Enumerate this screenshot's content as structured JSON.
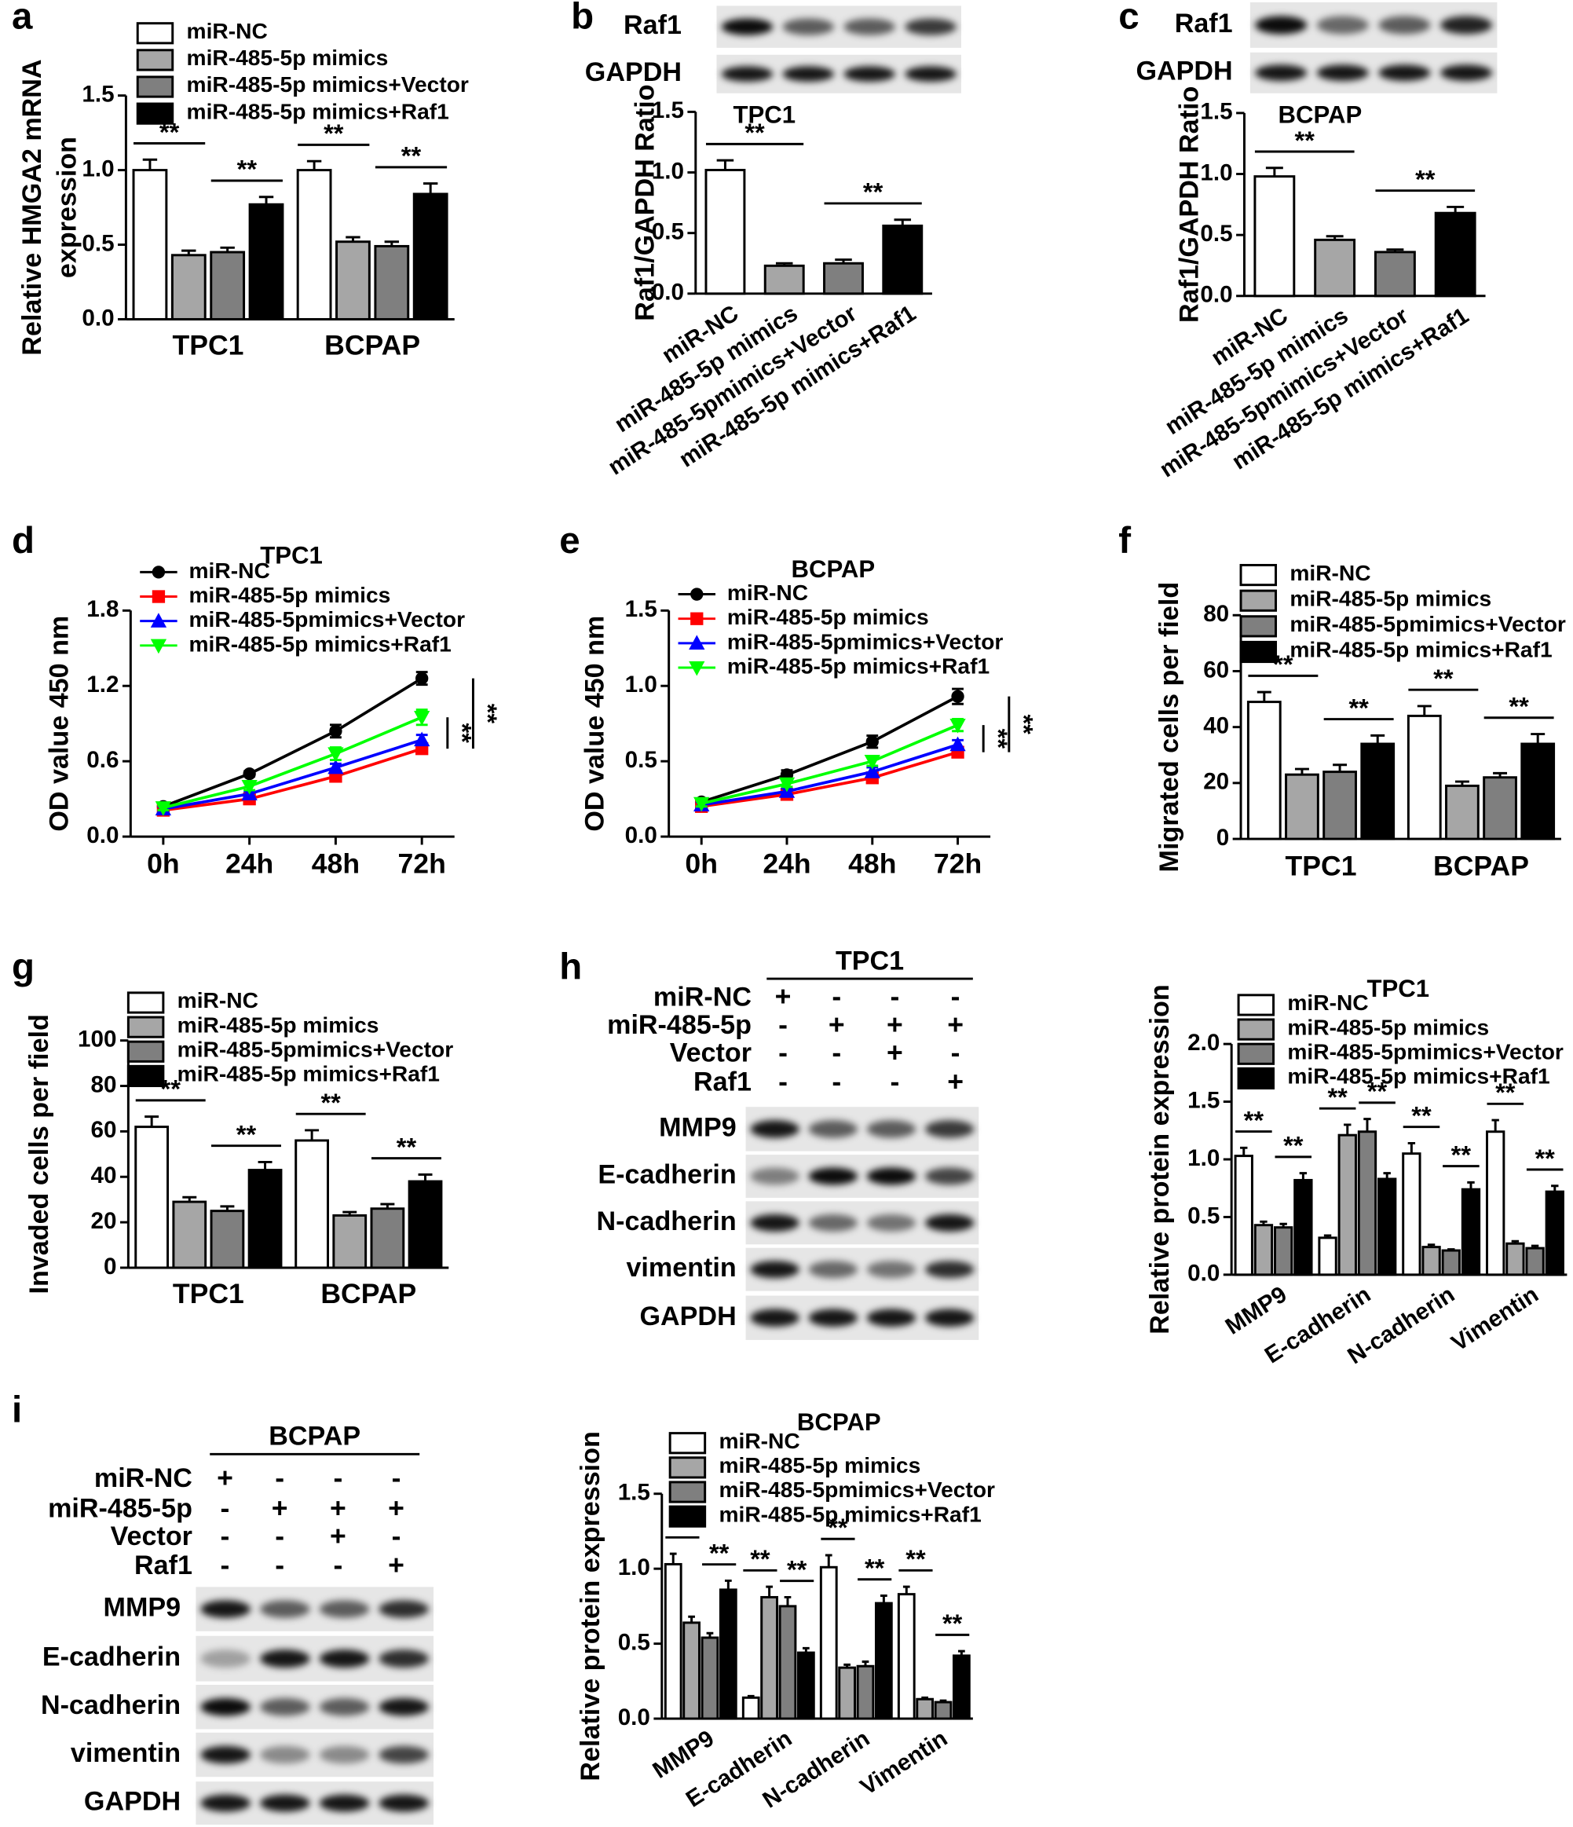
{
  "chart_data": [
    {
      "type": "bar",
      "ylabel": [
        "Relative HMGA2 mRNA",
        "expression"
      ],
      "categories": [
        "TPC1",
        "BCPAP"
      ],
      "series": [
        {
          "name": "miR-NC",
          "color": "#ffffff",
          "values": [
            1.0,
            1.0
          ],
          "errors": [
            0.07,
            0.06
          ]
        },
        {
          "name": "miR-485-5p mimics",
          "color": "#a6a6a6",
          "values": [
            0.43,
            0.52
          ],
          "errors": [
            0.03,
            0.03
          ]
        },
        {
          "name": "miR-485-5p mimics+Vector",
          "color": "#7f7f7f",
          "values": [
            0.45,
            0.49
          ],
          "errors": [
            0.03,
            0.03
          ]
        },
        {
          "name": "miR-485-5p mimics+Raf1",
          "color": "#000000",
          "values": [
            0.77,
            0.84
          ],
          "errors": [
            0.05,
            0.07
          ]
        }
      ],
      "ylim": [
        0,
        1.5
      ],
      "yticks": [
        {
          "value": 0,
          "label": "0.0"
        },
        0.5,
        {
          "value": 1,
          "label": "1.0"
        },
        1.5
      ],
      "annotations": [
        "**",
        "**",
        "**",
        "**"
      ]
    },
    {
      "type": "bar",
      "title": "TPC1",
      "ylabel": "Raf1/GAPDH Ratio",
      "categories": [
        "miR-NC",
        "miR-485-5p mimics",
        "miR-485-5pmimics+Vector",
        "miR-485-5p mimics+Raf1"
      ],
      "values": [
        1.02,
        0.23,
        0.25,
        0.56
      ],
      "errors": [
        0.08,
        0.02,
        0.03,
        0.05
      ],
      "colors": [
        "#ffffff",
        "#a6a6a6",
        "#7f7f7f",
        "#000000"
      ],
      "ylim": [
        0,
        1.5
      ],
      "yticks": [
        {
          "value": 0,
          "label": "0.0"
        },
        0.5,
        {
          "value": 1,
          "label": "1.0"
        },
        1.5
      ],
      "annotations": [
        "**",
        "**"
      ]
    },
    {
      "type": "bar",
      "title": "BCPAP",
      "ylabel": "Raf1/GAPDH Ratio",
      "categories": [
        "miR-NC",
        "miR-485-5p mimics",
        "miR-485-5pmimics+Vector",
        "miR-485-5p mimics+Raf1"
      ],
      "values": [
        0.98,
        0.46,
        0.36,
        0.68
      ],
      "errors": [
        0.07,
        0.03,
        0.02,
        0.05
      ],
      "colors": [
        "#ffffff",
        "#a6a6a6",
        "#7f7f7f",
        "#000000"
      ],
      "ylim": [
        0,
        1.5
      ],
      "yticks": [
        {
          "value": 0,
          "label": "0.0"
        },
        0.5,
        {
          "value": 1,
          "label": "1.0"
        },
        1.5
      ],
      "annotations": [
        "**",
        "**"
      ]
    },
    {
      "type": "line",
      "title": "TPC1",
      "ylabel": "OD value 450 nm",
      "categories": [
        "0h",
        "24h",
        "48h",
        "72h"
      ],
      "series": [
        {
          "name": "miR-NC",
          "color": "#000000",
          "marker": "circle",
          "values": [
            0.24,
            0.5,
            0.84,
            1.26
          ],
          "errors": [
            0.02,
            0.02,
            0.05,
            0.05
          ]
        },
        {
          "name": "miR-485-5p mimics",
          "color": "#ff0000",
          "marker": "square",
          "values": [
            0.21,
            0.3,
            0.48,
            0.7
          ],
          "errors": [
            0.02,
            0.02,
            0.03,
            0.04
          ]
        },
        {
          "name": "miR-485-5pmimics+Vector",
          "color": "#0000ff",
          "marker": "triangle",
          "values": [
            0.22,
            0.34,
            0.55,
            0.77
          ],
          "errors": [
            0.02,
            0.02,
            0.03,
            0.04
          ]
        },
        {
          "name": "miR-485-5p mimics+Raf1",
          "color": "#00ff00",
          "marker": "triangle-down",
          "values": [
            0.23,
            0.4,
            0.66,
            0.95
          ],
          "errors": [
            0.02,
            0.03,
            0.05,
            0.06
          ]
        }
      ],
      "ylim": [
        0,
        1.8
      ],
      "yticks": [
        {
          "value": 0,
          "label": "0.0"
        },
        0.6,
        1.2,
        1.8
      ],
      "annotations": [
        "**",
        "**"
      ]
    },
    {
      "type": "line",
      "title": "BCPAP",
      "ylabel": "OD value 450 nm",
      "categories": [
        "0h",
        "24h",
        "48h",
        "72h"
      ],
      "series": [
        {
          "name": "miR-NC",
          "color": "#000000",
          "marker": "circle",
          "values": [
            0.23,
            0.41,
            0.63,
            0.93
          ],
          "errors": [
            0.02,
            0.03,
            0.04,
            0.05
          ]
        },
        {
          "name": "miR-485-5p mimics",
          "color": "#ff0000",
          "marker": "square",
          "values": [
            0.2,
            0.28,
            0.39,
            0.56
          ],
          "errors": [
            0.02,
            0.02,
            0.02,
            0.03
          ]
        },
        {
          "name": "miR-485-5pmimics+Vector",
          "color": "#0000ff",
          "marker": "triangle",
          "values": [
            0.21,
            0.3,
            0.43,
            0.61
          ],
          "errors": [
            0.02,
            0.02,
            0.03,
            0.03
          ]
        },
        {
          "name": "miR-485-5p mimics+Raf1",
          "color": "#00ff00",
          "marker": "triangle-down",
          "values": [
            0.22,
            0.35,
            0.5,
            0.74
          ],
          "errors": [
            0.02,
            0.02,
            0.03,
            0.04
          ]
        }
      ],
      "ylim": [
        0,
        1.5
      ],
      "yticks": [
        {
          "value": 0,
          "label": "0.0"
        },
        0.5,
        {
          "value": 1,
          "label": "1.0"
        },
        1.5
      ],
      "annotations": [
        "**",
        "**"
      ]
    },
    {
      "type": "bar",
      "ylabel": "Migrated cells per field",
      "categories": [
        "TPC1",
        "BCPAP"
      ],
      "series": [
        {
          "name": "miR-NC",
          "color": "#ffffff",
          "values": [
            49,
            44
          ],
          "errors": [
            3.5,
            3.5
          ]
        },
        {
          "name": "miR-485-5p mimics",
          "color": "#a6a6a6",
          "values": [
            23,
            19
          ],
          "errors": [
            2,
            1.5
          ]
        },
        {
          "name": "miR-485-5pmimics+Vector",
          "color": "#7f7f7f",
          "values": [
            24,
            22
          ],
          "errors": [
            2.5,
            1.5
          ]
        },
        {
          "name": "miR-485-5p mimics+Raf1",
          "color": "#000000",
          "values": [
            34,
            34
          ],
          "errors": [
            3,
            3.5
          ]
        }
      ],
      "ylim": [
        0,
        80
      ],
      "yticks": [
        0,
        20,
        40,
        60,
        80
      ],
      "annotations": [
        "**",
        "**",
        "**",
        "**"
      ]
    },
    {
      "type": "bar",
      "ylabel": "Invaded cells per field",
      "categories": [
        "TPC1",
        "BCPAP"
      ],
      "series": [
        {
          "name": "miR-NC",
          "color": "#ffffff",
          "values": [
            62,
            56
          ],
          "errors": [
            4.5,
            4.5
          ]
        },
        {
          "name": "miR-485-5p mimics",
          "color": "#a6a6a6",
          "values": [
            29,
            23
          ],
          "errors": [
            2,
            1.5
          ]
        },
        {
          "name": "miR-485-5pmimics+Vector",
          "color": "#7f7f7f",
          "values": [
            25,
            26
          ],
          "errors": [
            2,
            2
          ]
        },
        {
          "name": "miR-485-5p mimics+Raf1",
          "color": "#000000",
          "values": [
            43,
            38
          ],
          "errors": [
            3.5,
            3
          ]
        }
      ],
      "ylim": [
        0,
        100
      ],
      "yticks": [
        0,
        20,
        40,
        60,
        80,
        100
      ],
      "annotations": [
        "**",
        "**",
        "**",
        "**"
      ]
    },
    {
      "type": "bar",
      "title": "TPC1",
      "ylabel": "Relative protein expression",
      "categories": [
        "MMP9",
        "E-cadherin",
        "N-cadherin",
        "Vimentin"
      ],
      "series": [
        {
          "name": "miR-NC",
          "color": "#ffffff",
          "values": [
            1.03,
            0.32,
            1.05,
            1.24
          ],
          "errors": [
            0.07,
            0.02,
            0.09,
            0.1
          ]
        },
        {
          "name": "miR-485-5p mimics",
          "color": "#a6a6a6",
          "values": [
            0.43,
            1.21,
            0.24,
            0.27
          ],
          "errors": [
            0.03,
            0.09,
            0.02,
            0.02
          ]
        },
        {
          "name": "miR-485-5pmimics+Vector",
          "color": "#7f7f7f",
          "values": [
            0.41,
            1.24,
            0.21,
            0.23
          ],
          "errors": [
            0.03,
            0.11,
            0.01,
            0.02
          ]
        },
        {
          "name": "miR-485-5p mimics+Raf1",
          "color": "#000000",
          "values": [
            0.82,
            0.83,
            0.74,
            0.72
          ],
          "errors": [
            0.06,
            0.05,
            0.06,
            0.05
          ]
        }
      ],
      "ylim": [
        0,
        2
      ],
      "yticks": [
        {
          "value": 0,
          "label": "0.0"
        },
        0.5,
        {
          "value": 1,
          "label": "1.0"
        },
        1.5,
        {
          "value": 2,
          "label": "2.0"
        }
      ],
      "annotations": [
        "**",
        "**",
        "**",
        "**",
        "**",
        "**",
        "**",
        "**"
      ]
    },
    {
      "type": "bar",
      "title": "BCPAP",
      "ylabel": "Relative protein expression",
      "categories": [
        "MMP9",
        "E-cadherin",
        "N-cadherin",
        "Vimentin"
      ],
      "series": [
        {
          "name": "miR-NC",
          "color": "#ffffff",
          "values": [
            1.03,
            0.14,
            1.01,
            0.83
          ],
          "errors": [
            0.07,
            0.01,
            0.08,
            0.05
          ]
        },
        {
          "name": "miR-485-5p mimics",
          "color": "#a6a6a6",
          "values": [
            0.64,
            0.81,
            0.34,
            0.13
          ],
          "errors": [
            0.04,
            0.07,
            0.02,
            0.01
          ]
        },
        {
          "name": "miR-485-5pmimics+Vector",
          "color": "#7f7f7f",
          "values": [
            0.54,
            0.75,
            0.35,
            0.11
          ],
          "errors": [
            0.03,
            0.06,
            0.03,
            0.01
          ]
        },
        {
          "name": "miR-485-5p mimics+Raf1",
          "color": "#000000",
          "values": [
            0.86,
            0.44,
            0.77,
            0.42
          ],
          "errors": [
            0.06,
            0.03,
            0.05,
            0.03
          ]
        }
      ],
      "ylim": [
        0,
        1.5
      ],
      "yticks": [
        {
          "value": 0,
          "label": "0.0"
        },
        0.5,
        {
          "value": 1,
          "label": "1.0"
        },
        1.5
      ],
      "annotations": [
        "**",
        "**",
        "**",
        "**",
        "**",
        "**",
        "**",
        "**"
      ]
    }
  ],
  "blots": [
    {
      "bands": [
        "Raf1",
        "GAPDH"
      ]
    },
    {
      "bands": [
        "Raf1",
        "GAPDH"
      ]
    },
    {
      "title": "TPC1",
      "conditions": [
        {
          "label": "miR-NC",
          "signs": [
            "+",
            "-",
            "-",
            "-"
          ]
        },
        {
          "label": "miR-485-5p",
          "signs": [
            "-",
            "+",
            "+",
            "+"
          ]
        },
        {
          "label": "Vector",
          "signs": [
            "-",
            "-",
            "+",
            "-"
          ]
        },
        {
          "label": "Raf1",
          "signs": [
            "-",
            "-",
            "-",
            "+"
          ]
        }
      ],
      "bands": [
        "MMP9",
        "E-cadherin",
        "N-cadherin",
        "vimentin",
        "GAPDH"
      ]
    },
    {
      "title": "BCPAP",
      "conditions": [
        {
          "label": "miR-NC",
          "signs": [
            "+",
            "-",
            "-",
            "-"
          ]
        },
        {
          "label": "miR-485-5p",
          "signs": [
            "-",
            "+",
            "+",
            "+"
          ]
        },
        {
          "label": "Vector",
          "signs": [
            "-",
            "-",
            "+",
            "-"
          ]
        },
        {
          "label": "Raf1",
          "signs": [
            "-",
            "-",
            "-",
            "+"
          ]
        }
      ],
      "bands": [
        "MMP9",
        "E-cadherin",
        "N-cadherin",
        "vimentin",
        "GAPDH"
      ]
    }
  ],
  "panel_letters": [
    "a",
    "b",
    "c",
    "d",
    "e",
    "f",
    "g",
    "h",
    "i"
  ]
}
